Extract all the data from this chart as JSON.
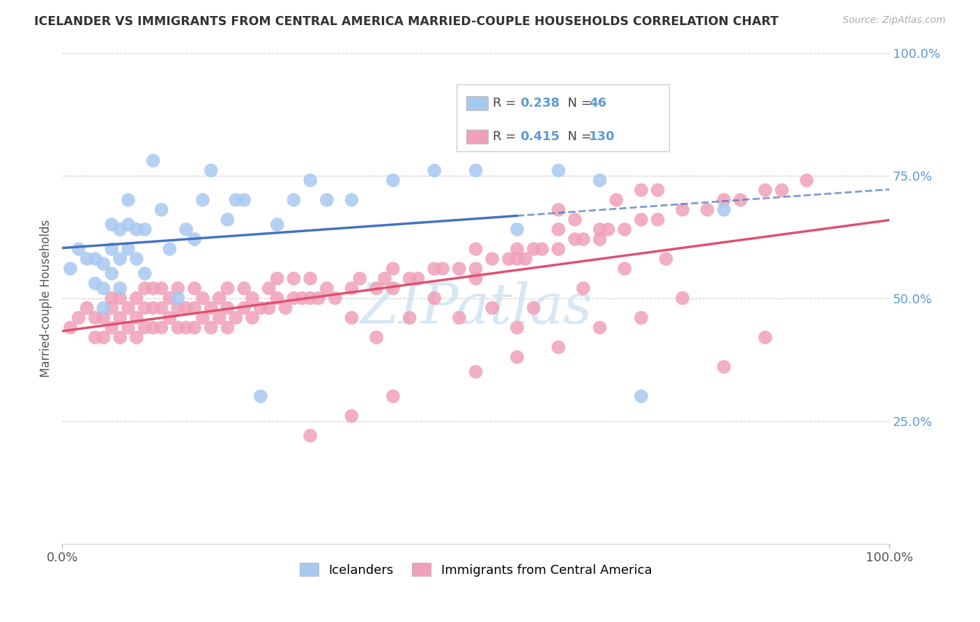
{
  "title": "ICELANDER VS IMMIGRANTS FROM CENTRAL AMERICA MARRIED-COUPLE HOUSEHOLDS CORRELATION CHART",
  "source": "Source: ZipAtlas.com",
  "ylabel": "Married-couple Households",
  "legend_blue_r": "0.238",
  "legend_blue_n": "46",
  "legend_pink_r": "0.415",
  "legend_pink_n": "130",
  "blue_color": "#a8c8f0",
  "pink_color": "#f0a0b8",
  "blue_line_color": "#4472c4",
  "pink_line_color": "#e05070",
  "watermark": "ZIPatlas",
  "watermark_color": "#c8ddf0",
  "ytick_color": "#5b9bd5",
  "blue_x": [
    0.01,
    0.02,
    0.03,
    0.04,
    0.04,
    0.05,
    0.05,
    0.05,
    0.06,
    0.06,
    0.06,
    0.07,
    0.07,
    0.07,
    0.08,
    0.08,
    0.08,
    0.09,
    0.09,
    0.1,
    0.1,
    0.11,
    0.12,
    0.13,
    0.14,
    0.15,
    0.16,
    0.17,
    0.18,
    0.2,
    0.21,
    0.22,
    0.24,
    0.26,
    0.28,
    0.3,
    0.32,
    0.35,
    0.4,
    0.45,
    0.5,
    0.55,
    0.6,
    0.65,
    0.7,
    0.8
  ],
  "blue_y": [
    0.56,
    0.6,
    0.58,
    0.53,
    0.58,
    0.48,
    0.52,
    0.57,
    0.55,
    0.6,
    0.65,
    0.52,
    0.58,
    0.64,
    0.6,
    0.65,
    0.7,
    0.58,
    0.64,
    0.55,
    0.64,
    0.78,
    0.68,
    0.6,
    0.5,
    0.64,
    0.62,
    0.7,
    0.76,
    0.66,
    0.7,
    0.7,
    0.3,
    0.65,
    0.7,
    0.74,
    0.7,
    0.7,
    0.74,
    0.76,
    0.76,
    0.64,
    0.76,
    0.74,
    0.3,
    0.68
  ],
  "pink_x": [
    0.01,
    0.02,
    0.03,
    0.04,
    0.04,
    0.05,
    0.05,
    0.06,
    0.06,
    0.06,
    0.07,
    0.07,
    0.07,
    0.08,
    0.08,
    0.09,
    0.09,
    0.09,
    0.1,
    0.1,
    0.1,
    0.11,
    0.11,
    0.11,
    0.12,
    0.12,
    0.12,
    0.13,
    0.13,
    0.14,
    0.14,
    0.14,
    0.15,
    0.15,
    0.16,
    0.16,
    0.16,
    0.17,
    0.17,
    0.18,
    0.18,
    0.19,
    0.19,
    0.2,
    0.2,
    0.2,
    0.21,
    0.22,
    0.22,
    0.23,
    0.23,
    0.24,
    0.25,
    0.25,
    0.26,
    0.26,
    0.27,
    0.28,
    0.28,
    0.29,
    0.3,
    0.3,
    0.31,
    0.32,
    0.33,
    0.35,
    0.36,
    0.38,
    0.39,
    0.4,
    0.4,
    0.42,
    0.43,
    0.45,
    0.46,
    0.48,
    0.5,
    0.5,
    0.52,
    0.54,
    0.55,
    0.56,
    0.57,
    0.58,
    0.6,
    0.6,
    0.62,
    0.63,
    0.65,
    0.66,
    0.68,
    0.7,
    0.72,
    0.75,
    0.78,
    0.8,
    0.82,
    0.85,
    0.87,
    0.9,
    0.35,
    0.4,
    0.3,
    0.5,
    0.45,
    0.55,
    0.35,
    0.48,
    0.52,
    0.38,
    0.42,
    0.6,
    0.65,
    0.7,
    0.75,
    0.55,
    0.62,
    0.67,
    0.72,
    0.57,
    0.63,
    0.68,
    0.73,
    0.5,
    0.55,
    0.65,
    0.6,
    0.7,
    0.8,
    0.85
  ],
  "pink_y": [
    0.44,
    0.46,
    0.48,
    0.42,
    0.46,
    0.42,
    0.46,
    0.44,
    0.48,
    0.5,
    0.42,
    0.46,
    0.5,
    0.44,
    0.48,
    0.42,
    0.46,
    0.5,
    0.44,
    0.48,
    0.52,
    0.44,
    0.48,
    0.52,
    0.44,
    0.48,
    0.52,
    0.46,
    0.5,
    0.44,
    0.48,
    0.52,
    0.44,
    0.48,
    0.44,
    0.48,
    0.52,
    0.46,
    0.5,
    0.44,
    0.48,
    0.46,
    0.5,
    0.44,
    0.48,
    0.52,
    0.46,
    0.48,
    0.52,
    0.46,
    0.5,
    0.48,
    0.48,
    0.52,
    0.5,
    0.54,
    0.48,
    0.5,
    0.54,
    0.5,
    0.5,
    0.54,
    0.5,
    0.52,
    0.5,
    0.52,
    0.54,
    0.52,
    0.54,
    0.52,
    0.56,
    0.54,
    0.54,
    0.56,
    0.56,
    0.56,
    0.56,
    0.6,
    0.58,
    0.58,
    0.6,
    0.58,
    0.6,
    0.6,
    0.6,
    0.64,
    0.62,
    0.62,
    0.64,
    0.64,
    0.64,
    0.66,
    0.66,
    0.68,
    0.68,
    0.7,
    0.7,
    0.72,
    0.72,
    0.74,
    0.26,
    0.3,
    0.22,
    0.35,
    0.5,
    0.38,
    0.46,
    0.46,
    0.48,
    0.42,
    0.46,
    0.4,
    0.44,
    0.46,
    0.5,
    0.44,
    0.66,
    0.7,
    0.72,
    0.48,
    0.52,
    0.56,
    0.58,
    0.54,
    0.58,
    0.62,
    0.68,
    0.72,
    0.36,
    0.42
  ]
}
